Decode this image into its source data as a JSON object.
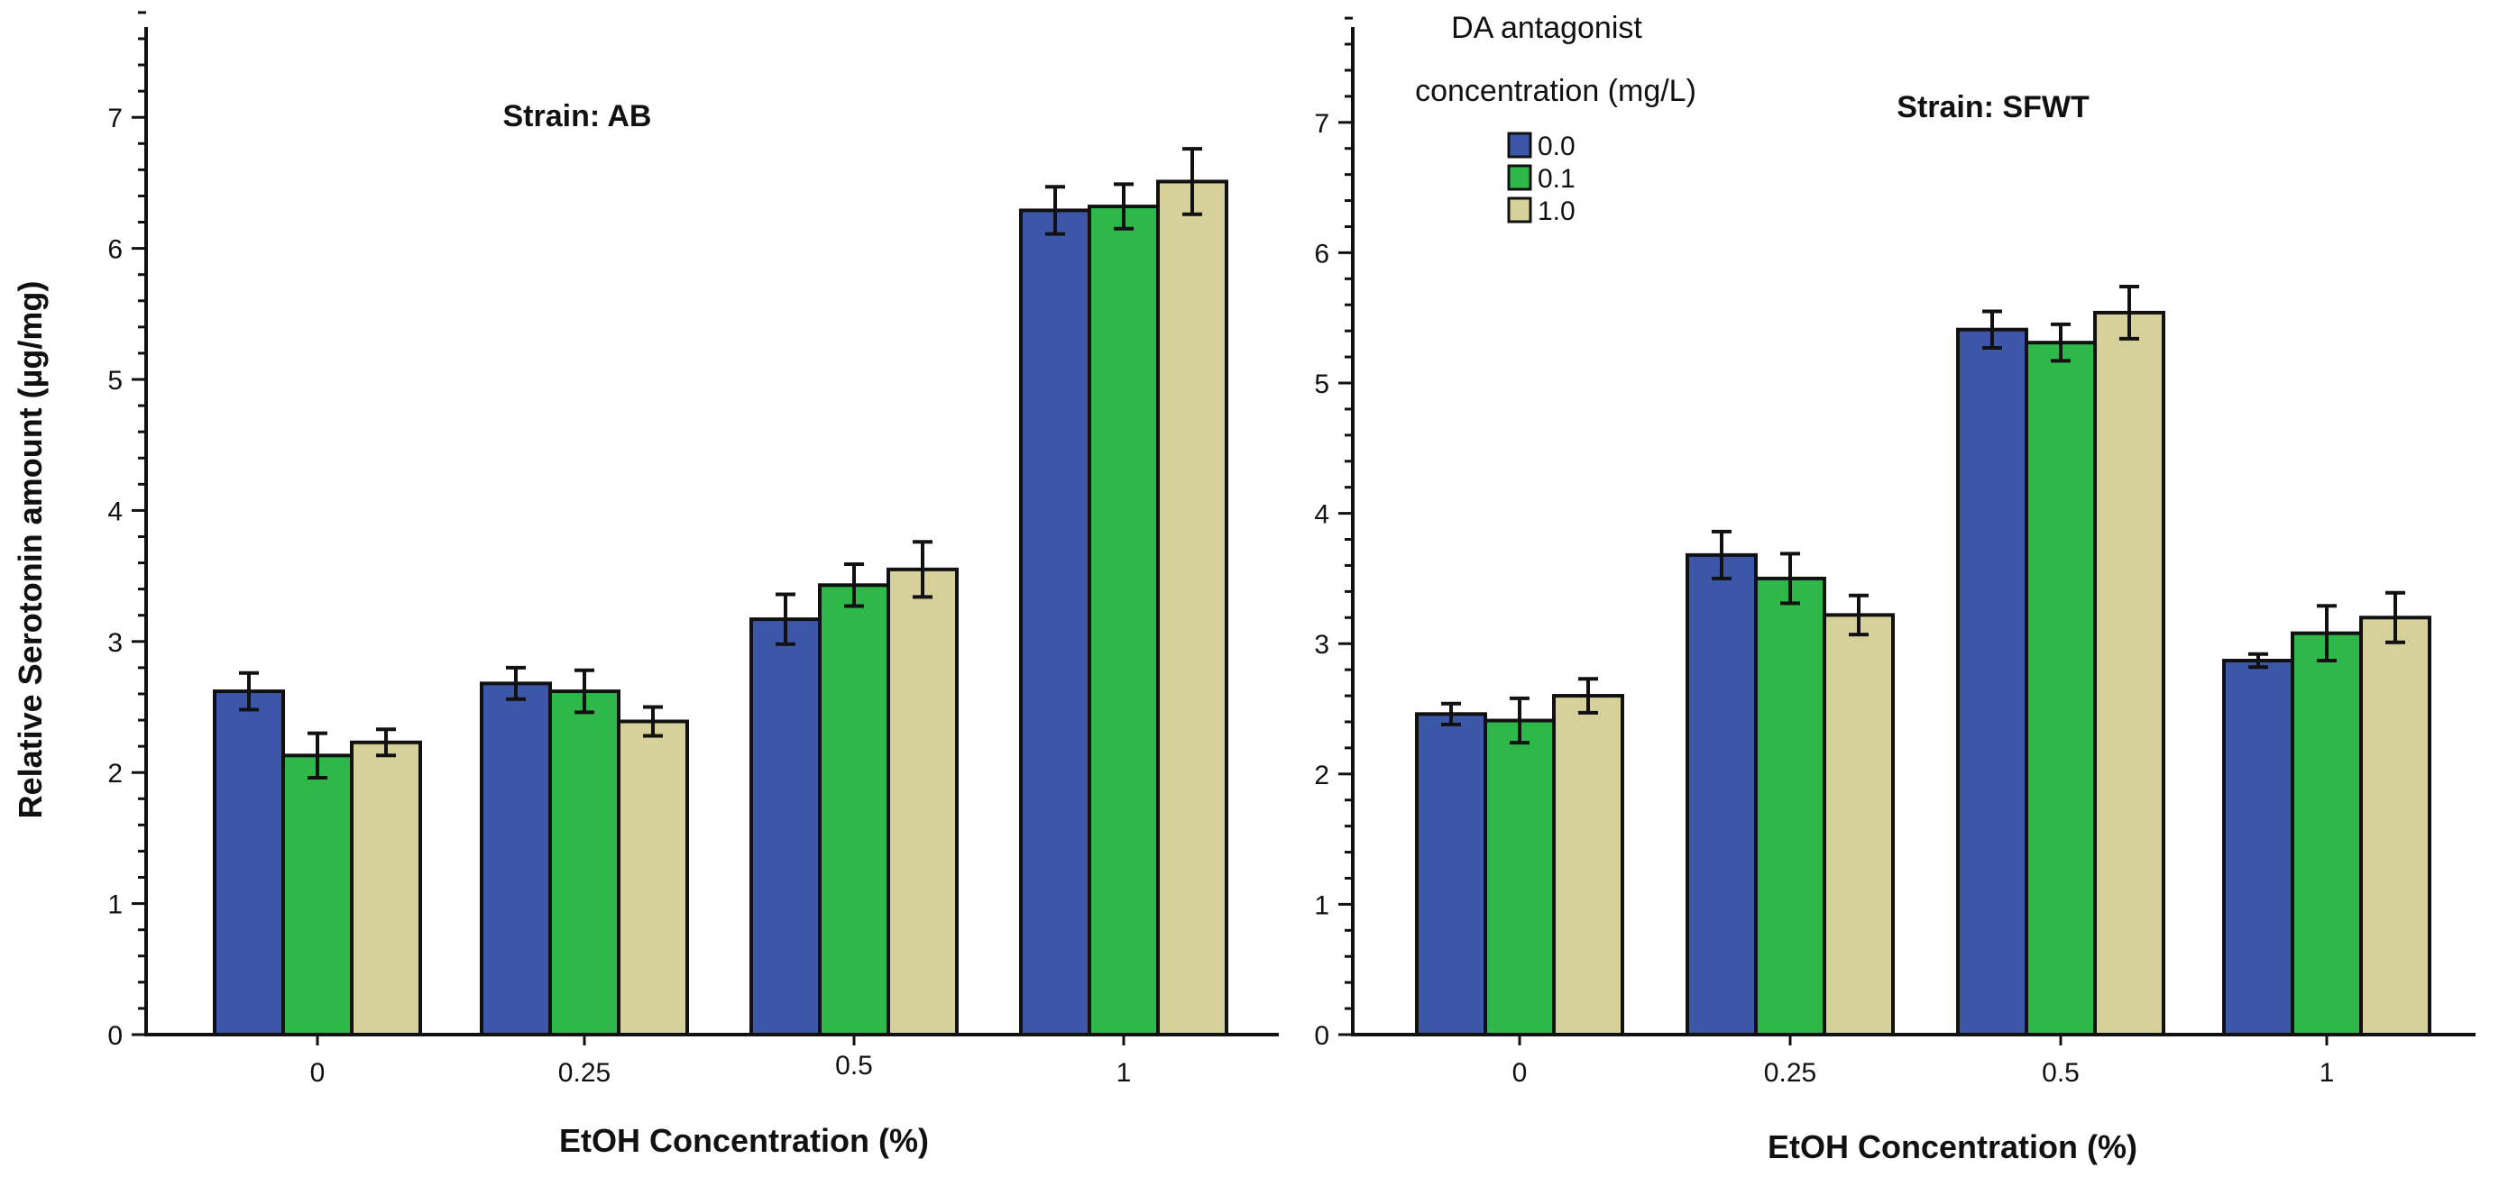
{
  "chart_data": [
    {
      "type": "bar",
      "title": "Strain: AB",
      "xlabel": "EtOH Concentration (%)",
      "ylabel": "Relative Serotonin amount (µg/mg)",
      "ylim": [
        0,
        7.8
      ],
      "yticks": [
        "0",
        "1",
        "2",
        "3",
        "4",
        "5",
        "6",
        "7"
      ],
      "categories": [
        "0",
        "0.25",
        "0.5",
        "1"
      ],
      "series": [
        {
          "name": "0.0",
          "color": "#3d57a8",
          "values": [
            2.62,
            2.68,
            3.17,
            6.29
          ],
          "errors": [
            0.14,
            0.12,
            0.19,
            0.18
          ]
        },
        {
          "name": "0.1",
          "color": "#2eb84a",
          "values": [
            2.13,
            2.62,
            3.43,
            6.32
          ],
          "errors": [
            0.17,
            0.16,
            0.16,
            0.17
          ]
        },
        {
          "name": "1.0",
          "color": "#d6d09a",
          "values": [
            2.23,
            2.39,
            3.55,
            6.51
          ],
          "errors": [
            0.1,
            0.11,
            0.21,
            0.25
          ]
        }
      ]
    },
    {
      "type": "bar",
      "title": "Strain: SFWT",
      "xlabel": "EtOH Concentration (%)",
      "ylabel": "",
      "ylim": [
        0,
        7.8
      ],
      "yticks": [
        "0",
        "1",
        "2",
        "3",
        "4",
        "5",
        "6",
        "7"
      ],
      "categories": [
        "0",
        "0.25",
        "0.5",
        "1"
      ],
      "legend": {
        "title_line1": "DA antagonist",
        "title_line2": "concentration  (mg/L)",
        "placement": "top-left"
      },
      "series": [
        {
          "name": "0.0",
          "color": "#3d57a8",
          "values": [
            2.46,
            3.68,
            5.41,
            2.87
          ],
          "errors": [
            0.08,
            0.18,
            0.14,
            0.05
          ]
        },
        {
          "name": "0.1",
          "color": "#2eb84a",
          "values": [
            2.41,
            3.5,
            5.31,
            3.08
          ],
          "errors": [
            0.17,
            0.19,
            0.14,
            0.21
          ]
        },
        {
          "name": "1.0",
          "color": "#d6d09a",
          "values": [
            2.6,
            3.22,
            5.54,
            3.2
          ],
          "errors": [
            0.13,
            0.15,
            0.2,
            0.19
          ]
        }
      ]
    }
  ]
}
